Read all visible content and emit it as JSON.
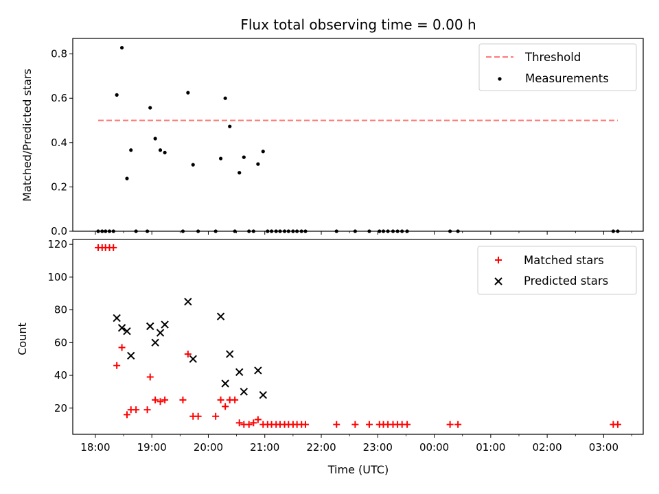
{
  "title": "Flux total observing time = 0.00 h",
  "xlabel": "Time (UTC)",
  "x_tick_labels": [
    "18:00",
    "19:00",
    "20:00",
    "21:00",
    "22:00",
    "23:00",
    "00:00",
    "01:00",
    "02:00",
    "03:00"
  ],
  "colors": {
    "threshold": "#ff7777",
    "measurement": "#000000",
    "matched": "#ff0000",
    "predicted": "#000000"
  },
  "chart_data": [
    {
      "type": "scatter",
      "ylabel": "Matched/Predicted stars",
      "xlim_hours": [
        17.6,
        27.7
      ],
      "ylim": [
        0,
        0.87
      ],
      "y_ticks": [
        0.0,
        0.2,
        0.4,
        0.6,
        0.8
      ],
      "legend_location": "upper right",
      "threshold": {
        "name": "Threshold",
        "value": 0.5,
        "x_range_hours": [
          18.05,
          27.25
        ]
      },
      "measurements": {
        "name": "Measurements",
        "points": [
          [
            18.05,
            0
          ],
          [
            18.12,
            0
          ],
          [
            18.18,
            0
          ],
          [
            18.25,
            0
          ],
          [
            18.32,
            0
          ],
          [
            18.38,
            0.615
          ],
          [
            18.47,
            0.828
          ],
          [
            18.56,
            0.238
          ],
          [
            18.63,
            0.366
          ],
          [
            18.72,
            0
          ],
          [
            18.92,
            0
          ],
          [
            18.97,
            0.557
          ],
          [
            19.06,
            0.418
          ],
          [
            19.15,
            0.366
          ],
          [
            19.23,
            0.355
          ],
          [
            19.55,
            0
          ],
          [
            19.64,
            0.625
          ],
          [
            19.73,
            0.3
          ],
          [
            19.82,
            0
          ],
          [
            20.13,
            0
          ],
          [
            20.22,
            0.328
          ],
          [
            20.3,
            0.6
          ],
          [
            20.38,
            0.473
          ],
          [
            20.47,
            0
          ],
          [
            20.55,
            0.264
          ],
          [
            20.63,
            0.334
          ],
          [
            20.72,
            0
          ],
          [
            20.8,
            0
          ],
          [
            20.88,
            0.303
          ],
          [
            20.97,
            0.36
          ],
          [
            21.05,
            0
          ],
          [
            21.12,
            0
          ],
          [
            21.2,
            0
          ],
          [
            21.27,
            0
          ],
          [
            21.35,
            0
          ],
          [
            21.42,
            0
          ],
          [
            21.5,
            0
          ],
          [
            21.57,
            0
          ],
          [
            21.65,
            0
          ],
          [
            21.72,
            0
          ],
          [
            22.27,
            0
          ],
          [
            22.6,
            0
          ],
          [
            22.85,
            0
          ],
          [
            23.03,
            0
          ],
          [
            23.1,
            0
          ],
          [
            23.18,
            0
          ],
          [
            23.27,
            0
          ],
          [
            23.35,
            0
          ],
          [
            23.43,
            0
          ],
          [
            23.52,
            0
          ],
          [
            24.28,
            0
          ],
          [
            24.42,
            0
          ],
          [
            27.17,
            0
          ],
          [
            27.25,
            0
          ]
        ]
      }
    },
    {
      "type": "scatter",
      "ylabel": "Count",
      "xlim_hours": [
        17.6,
        27.7
      ],
      "ylim": [
        4,
        123
      ],
      "y_ticks": [
        20,
        40,
        60,
        80,
        100,
        120
      ],
      "legend_location": "upper right",
      "series": [
        {
          "name": "Matched stars",
          "marker": "plus",
          "points": [
            [
              18.05,
              118
            ],
            [
              18.12,
              118
            ],
            [
              18.18,
              118
            ],
            [
              18.25,
              118
            ],
            [
              18.32,
              118
            ],
            [
              18.38,
              46
            ],
            [
              18.47,
              57
            ],
            [
              18.56,
              16
            ],
            [
              18.63,
              19
            ],
            [
              18.72,
              19
            ],
            [
              18.92,
              19
            ],
            [
              18.97,
              39
            ],
            [
              19.06,
              25
            ],
            [
              19.15,
              24
            ],
            [
              19.23,
              25
            ],
            [
              19.55,
              25
            ],
            [
              19.64,
              53
            ],
            [
              19.73,
              15
            ],
            [
              19.82,
              15
            ],
            [
              20.13,
              15
            ],
            [
              20.22,
              25
            ],
            [
              20.3,
              21
            ],
            [
              20.38,
              25
            ],
            [
              20.47,
              25
            ],
            [
              20.55,
              11
            ],
            [
              20.63,
              10
            ],
            [
              20.72,
              10
            ],
            [
              20.8,
              11
            ],
            [
              20.88,
              13
            ],
            [
              20.97,
              10
            ],
            [
              21.05,
              10
            ],
            [
              21.12,
              10
            ],
            [
              21.2,
              10
            ],
            [
              21.27,
              10
            ],
            [
              21.35,
              10
            ],
            [
              21.42,
              10
            ],
            [
              21.5,
              10
            ],
            [
              21.57,
              10
            ],
            [
              21.65,
              10
            ],
            [
              21.72,
              10
            ],
            [
              22.27,
              10
            ],
            [
              22.6,
              10
            ],
            [
              22.85,
              10
            ],
            [
              23.03,
              10
            ],
            [
              23.1,
              10
            ],
            [
              23.18,
              10
            ],
            [
              23.27,
              10
            ],
            [
              23.35,
              10
            ],
            [
              23.43,
              10
            ],
            [
              23.52,
              10
            ],
            [
              24.28,
              10
            ],
            [
              24.42,
              10
            ],
            [
              27.17,
              10
            ],
            [
              27.25,
              10
            ]
          ]
        },
        {
          "name": "Predicted stars",
          "marker": "x",
          "points": [
            [
              18.38,
              75
            ],
            [
              18.47,
              69
            ],
            [
              18.56,
              67
            ],
            [
              18.63,
              52
            ],
            [
              18.97,
              70
            ],
            [
              19.06,
              60
            ],
            [
              19.15,
              66
            ],
            [
              19.23,
              71
            ],
            [
              19.64,
              85
            ],
            [
              19.73,
              50
            ],
            [
              20.22,
              76
            ],
            [
              20.3,
              35
            ],
            [
              20.38,
              53
            ],
            [
              20.55,
              42
            ],
            [
              20.63,
              30
            ],
            [
              20.88,
              43
            ],
            [
              20.97,
              28
            ]
          ]
        }
      ]
    }
  ]
}
